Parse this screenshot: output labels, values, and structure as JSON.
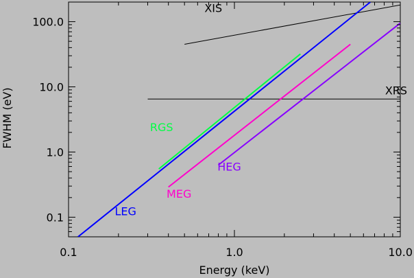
{
  "chart_data": {
    "type": "line",
    "title": "",
    "xlabel": "Energy (keV)",
    "ylabel": "FWHM (eV)",
    "xscale": "log",
    "yscale": "log",
    "xlim": [
      0.1,
      10.0
    ],
    "ylim": [
      0.05,
      200.0
    ],
    "grid": false,
    "legend": "none",
    "background": "#bebebe",
    "x_ticks": [
      {
        "value": 0.1,
        "label": "0.1"
      },
      {
        "value": 1.0,
        "label": "1.0"
      },
      {
        "value": 10.0,
        "label": "10.0"
      }
    ],
    "y_ticks": [
      {
        "value": 0.1,
        "label": "0.1"
      },
      {
        "value": 1.0,
        "label": "1.0"
      },
      {
        "value": 10.0,
        "label": "10.0"
      },
      {
        "value": 100.0,
        "label": "100.0"
      }
    ],
    "series": [
      {
        "name": "XIS",
        "color": "#000000",
        "x": [
          0.5,
          10.0
        ],
        "y": [
          45,
          180
        ],
        "label_at": [
          0.66,
          140
        ]
      },
      {
        "name": "XRS",
        "color": "#000000",
        "x": [
          0.3,
          10.0
        ],
        "y": [
          6.5,
          6.5
        ],
        "label_at": [
          8.1,
          7.7
        ]
      },
      {
        "name": "LEG",
        "color": "#0000ff",
        "x": [
          0.114,
          6.6
        ],
        "y": [
          0.05,
          200
        ],
        "label_at": [
          0.19,
          0.107
        ]
      },
      {
        "name": "RGS",
        "color": "#00ff44",
        "x": [
          0.35,
          2.5
        ],
        "y": [
          0.55,
          32
        ],
        "label_at": [
          0.31,
          2.1
        ]
      },
      {
        "name": "MEG",
        "color": "#ff00cc",
        "x": [
          0.4,
          5.0
        ],
        "y": [
          0.29,
          45
        ],
        "label_at": [
          0.39,
          0.2
        ]
      },
      {
        "name": "HEG",
        "color": "#8800ff",
        "x": [
          0.8,
          10.0
        ],
        "y": [
          0.63,
          95
        ],
        "label_at": [
          0.79,
          0.52
        ]
      }
    ]
  }
}
